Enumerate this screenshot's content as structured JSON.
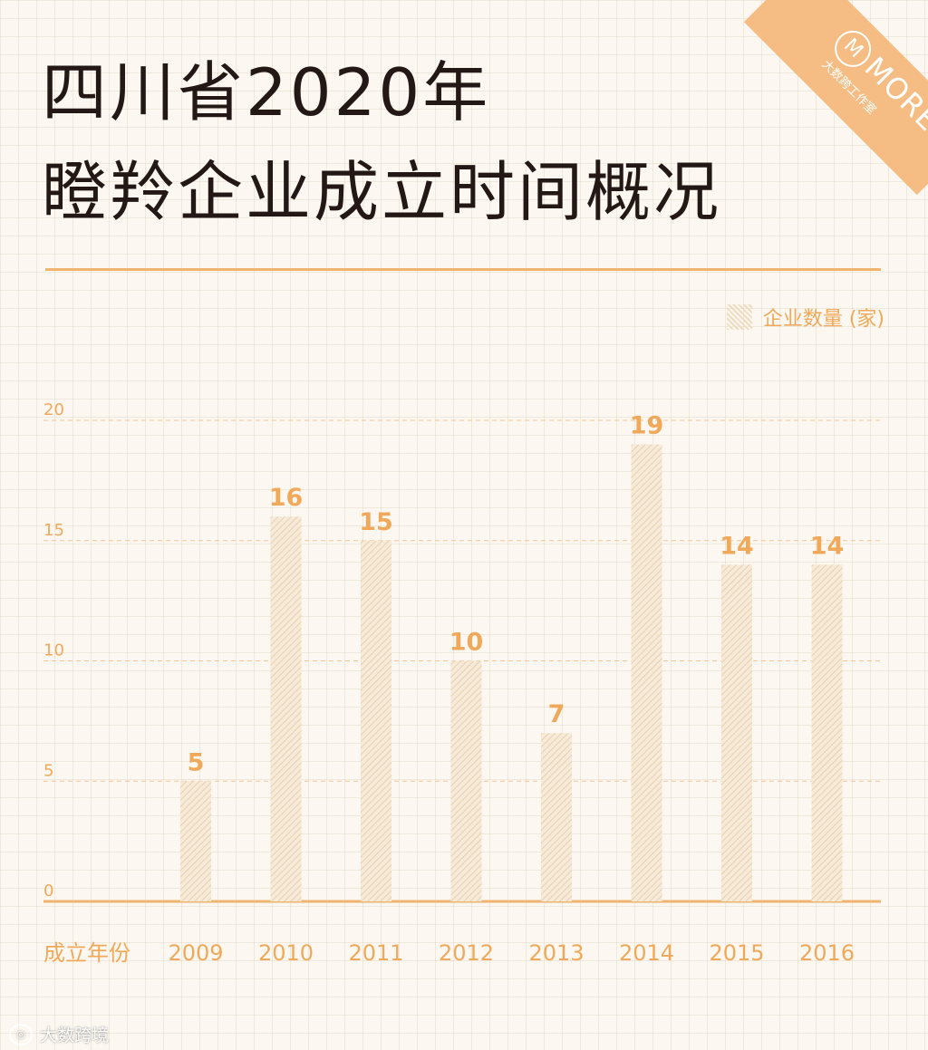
{
  "title_line1": "四川省2020年",
  "title_line2": "瞪羚企业成立时间概况",
  "legend_label": "企业数量 (家)",
  "badge": {
    "brand": "MORE",
    "subtitle": "大数跨工作室"
  },
  "watermark": {
    "text": "大数跨境",
    "icon": "weibo-icon"
  },
  "chart_data": {
    "type": "bar",
    "categories": [
      "2009",
      "2010",
      "2011",
      "2012",
      "2013",
      "2014",
      "2015",
      "2016"
    ],
    "values": [
      5,
      16,
      15,
      10,
      7,
      19,
      14,
      14
    ],
    "series": [
      {
        "name": "企业数量 (家)",
        "values": [
          5,
          16,
          15,
          10,
          7,
          19,
          14,
          14
        ]
      }
    ],
    "xlabel": "成立年份",
    "ylabel": "",
    "yticks": [
      0,
      5,
      10,
      15,
      20
    ],
    "ylim": [
      0,
      20
    ],
    "grid": true,
    "legend_position": "top-right",
    "colors": {
      "bar_hatch": "#efdcc0",
      "value_label": "#f0a95a",
      "axis": "#f0b46f",
      "gridline": "#f3c495",
      "title": "#231815"
    }
  }
}
